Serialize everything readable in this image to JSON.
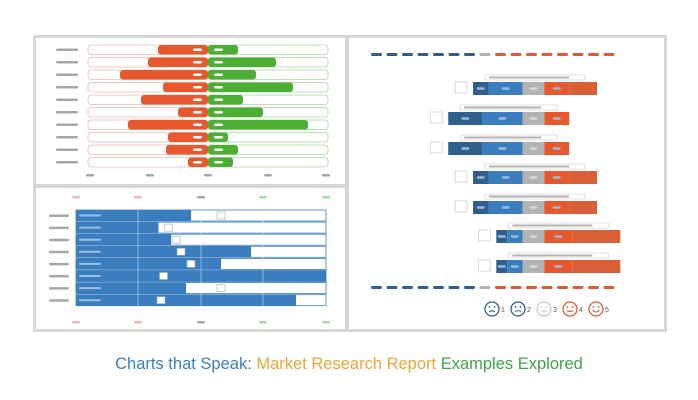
{
  "caption": {
    "part1": "Charts that Speak: ",
    "part2": "Market Research Report",
    "part3": " Examples Explored",
    "color1": "#3b7fc2",
    "color2": "#f0a533",
    "color3": "#3fa448"
  },
  "colors": {
    "orange": "#e8582e",
    "green": "#4caf33",
    "blue": "#3a7ebf",
    "navy": "#2f5f8c",
    "gray": "#b3b3b3",
    "red_orange": "#d85f36",
    "light_red": "#f2b7b0",
    "light_green": "#a6d8a0",
    "placeholder": "#a6a6a6"
  },
  "chart_data": [
    {
      "type": "bar",
      "subtype": "diverging",
      "title": "",
      "categories": [
        "",
        "",
        "",
        "",
        "",
        "",
        "",
        "",
        "",
        ""
      ],
      "series": [
        {
          "values": [
            -50,
            -60,
            -88,
            -45,
            -67,
            -30,
            -80,
            -40,
            -42,
            -20
          ]
        },
        {
          "values": [
            30,
            68,
            48,
            85,
            35,
            55,
            100,
            20,
            30,
            25
          ]
        }
      ],
      "xlim": [
        -120,
        120
      ]
    },
    {
      "type": "bar",
      "subtype": "horizontal-with-target",
      "title": "",
      "categories": [
        "",
        "",
        "",
        "",
        "",
        "",
        "",
        ""
      ],
      "values": [
        46,
        33,
        38,
        70,
        58,
        100,
        44,
        88
      ],
      "targets": [
        58,
        37,
        40,
        42,
        46,
        35,
        58,
        34
      ],
      "xlim": [
        0,
        100
      ]
    },
    {
      "type": "bar",
      "subtype": "stacked-diverging-likert",
      "title": "",
      "categories": [
        "",
        "",
        "",
        "",
        "",
        "",
        ""
      ],
      "scale_labels": [
        "1",
        "2",
        "3",
        "4",
        "5"
      ],
      "series": [
        {
          "values": [
            10,
            22,
            22,
            10,
            10,
            7,
            7
          ]
        },
        {
          "values": [
            22,
            26,
            26,
            22,
            22,
            10,
            10
          ]
        },
        {
          "values": [
            14,
            14,
            14,
            14,
            14,
            14,
            14
          ]
        },
        {
          "values": [
            16,
            16,
            16,
            16,
            16,
            18,
            18
          ]
        },
        {
          "values": [
            18,
            0,
            0,
            18,
            18,
            31,
            31
          ]
        }
      ],
      "xlim": [
        -46,
        46
      ]
    }
  ]
}
